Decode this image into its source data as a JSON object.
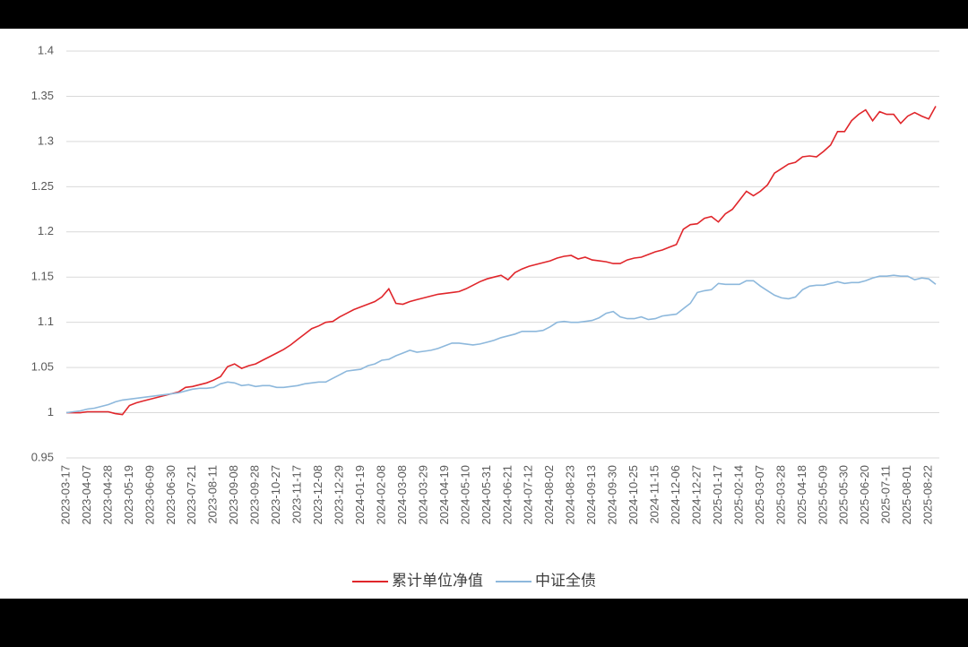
{
  "chart_data": {
    "type": "line",
    "categories": [
      "2023-03-17",
      null,
      null,
      "2023-04-07",
      null,
      null,
      "2023-04-28",
      null,
      null,
      "2023-05-19",
      null,
      null,
      "2023-06-09",
      null,
      null,
      "2023-06-30",
      null,
      null,
      "2023-07-21",
      null,
      null,
      "2023-08-11",
      null,
      null,
      "2023-09-08",
      null,
      null,
      "2023-09-28",
      null,
      null,
      "2023-10-27",
      null,
      null,
      "2023-11-17",
      null,
      null,
      "2023-12-08",
      null,
      null,
      "2023-12-29",
      null,
      null,
      "2024-01-19",
      null,
      null,
      "2024-02-08",
      null,
      null,
      "2024-03-08",
      null,
      null,
      "2024-03-29",
      null,
      null,
      "2024-04-19",
      null,
      null,
      "2024-05-10",
      null,
      null,
      "2024-05-31",
      null,
      null,
      "2024-06-21",
      null,
      null,
      "2024-07-12",
      null,
      null,
      "2024-08-02",
      null,
      null,
      "2024-08-23",
      null,
      null,
      "2024-09-13",
      null,
      null,
      "2024-09-30",
      null,
      null,
      "2024-10-25",
      null,
      null,
      "2024-11-15",
      null,
      null,
      "2024-12-06",
      null,
      null,
      "2024-12-27",
      null,
      null,
      "2025-01-17",
      null,
      null,
      "2025-02-14",
      null,
      null,
      "2025-03-07",
      null,
      null,
      "2025-03-28",
      null,
      null,
      "2025-04-18",
      null,
      null,
      "2025-05-09",
      null,
      null,
      "2025-05-30",
      null,
      null,
      "2025-06-20",
      null,
      null,
      "2025-07-11",
      null,
      null,
      "2025-08-01",
      null,
      null,
      "2025-08-22",
      null
    ],
    "series": [
      {
        "name": "累计单位净值",
        "color": "#e0262b",
        "values": [
          1.0,
          1.0,
          1.0,
          1.001,
          1.001,
          1.001,
          1.001,
          0.999,
          0.998,
          1.008,
          1.011,
          1.013,
          1.015,
          1.017,
          1.019,
          1.021,
          1.023,
          1.028,
          1.029,
          1.031,
          1.033,
          1.036,
          1.04,
          1.051,
          1.054,
          1.049,
          1.052,
          1.054,
          1.058,
          1.062,
          1.066,
          1.07,
          1.075,
          1.081,
          1.087,
          1.093,
          1.096,
          1.1,
          1.101,
          1.106,
          1.11,
          1.114,
          1.117,
          1.12,
          1.123,
          1.128,
          1.137,
          1.121,
          1.12,
          1.123,
          1.125,
          1.127,
          1.129,
          1.131,
          1.132,
          1.133,
          1.134,
          1.137,
          1.141,
          1.145,
          1.148,
          1.15,
          1.152,
          1.147,
          1.155,
          1.159,
          1.162,
          1.164,
          1.166,
          1.168,
          1.171,
          1.173,
          1.174,
          1.17,
          1.172,
          1.169,
          1.168,
          1.167,
          1.165,
          1.165,
          1.169,
          1.171,
          1.172,
          1.175,
          1.178,
          1.18,
          1.183,
          1.186,
          1.203,
          1.208,
          1.209,
          1.215,
          1.217,
          1.211,
          1.22,
          1.225,
          1.235,
          1.245,
          1.24,
          1.245,
          1.252,
          1.265,
          1.27,
          1.275,
          1.277,
          1.283,
          1.284,
          1.283,
          1.289,
          1.296,
          1.311,
          1.311,
          1.323,
          1.33,
          1.335,
          1.323,
          1.333,
          1.33,
          1.33,
          1.32,
          1.328,
          1.332,
          1.328,
          1.325,
          1.339
        ]
      },
      {
        "name": "中证全债",
        "color": "#8db8dc",
        "values": [
          1.0,
          1.001,
          1.002,
          1.004,
          1.005,
          1.007,
          1.009,
          1.012,
          1.014,
          1.015,
          1.016,
          1.017,
          1.018,
          1.019,
          1.02,
          1.021,
          1.022,
          1.024,
          1.026,
          1.027,
          1.027,
          1.028,
          1.032,
          1.034,
          1.033,
          1.03,
          1.031,
          1.029,
          1.03,
          1.03,
          1.028,
          1.028,
          1.029,
          1.03,
          1.032,
          1.033,
          1.034,
          1.034,
          1.038,
          1.042,
          1.046,
          1.047,
          1.048,
          1.052,
          1.054,
          1.058,
          1.059,
          1.063,
          1.066,
          1.069,
          1.067,
          1.068,
          1.069,
          1.071,
          1.074,
          1.077,
          1.077,
          1.076,
          1.075,
          1.076,
          1.078,
          1.08,
          1.083,
          1.085,
          1.087,
          1.09,
          1.09,
          1.09,
          1.091,
          1.095,
          1.1,
          1.101,
          1.1,
          1.1,
          1.101,
          1.102,
          1.105,
          1.11,
          1.112,
          1.106,
          1.104,
          1.104,
          1.106,
          1.103,
          1.104,
          1.107,
          1.108,
          1.109,
          1.115,
          1.121,
          1.133,
          1.135,
          1.136,
          1.143,
          1.142,
          1.142,
          1.142,
          1.146,
          1.146,
          1.14,
          1.135,
          1.13,
          1.127,
          1.126,
          1.128,
          1.136,
          1.14,
          1.141,
          1.141,
          1.143,
          1.145,
          1.143,
          1.144,
          1.144,
          1.146,
          1.149,
          1.151,
          1.151,
          1.152,
          1.151,
          1.151,
          1.147,
          1.149,
          1.148,
          1.142
        ]
      }
    ],
    "ylim": [
      0.95,
      1.4
    ],
    "yticks": [
      0.95,
      1,
      1.05,
      1.1,
      1.15,
      1.2,
      1.25,
      1.3,
      1.35,
      1.4
    ],
    "grid": true
  }
}
